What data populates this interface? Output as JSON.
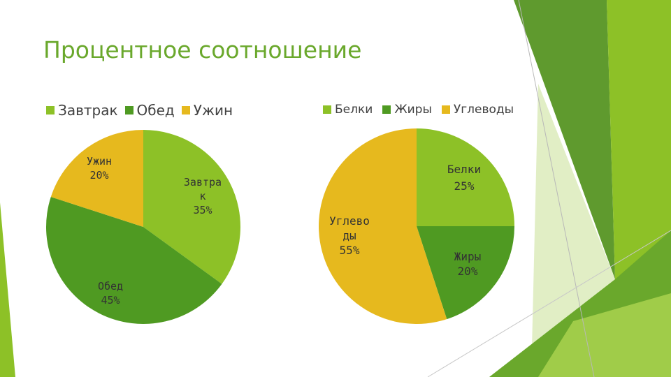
{
  "slide": {
    "title": "Процентное соотношение"
  },
  "colors": {
    "accent_green": "#6aa82c",
    "light_green": "#8dc127",
    "dark_green": "#4f9a22",
    "yellow": "#e6b91e"
  },
  "chart_data": [
    {
      "type": "pie",
      "title": "",
      "legend": "top",
      "categories": [
        "Завтрак",
        "Обед",
        "Ужин"
      ],
      "values": [
        35,
        45,
        20
      ],
      "unit": "%",
      "data_labels": [
        [
          "Завтра",
          "к",
          "35%"
        ],
        [
          "Обед",
          "45%"
        ],
        [
          "Ужин",
          "20%"
        ]
      ],
      "colors": [
        "#8dc127",
        "#4f9a22",
        "#e6b91e"
      ]
    },
    {
      "type": "pie",
      "title": "",
      "legend": "top",
      "categories": [
        "Белки",
        "Жиры",
        "Углеводы"
      ],
      "values": [
        25,
        20,
        55
      ],
      "unit": "%",
      "data_labels": [
        [
          "Белки",
          "25%"
        ],
        [
          "Жиры",
          "20%"
        ],
        [
          "Углево",
          "ды",
          "55%"
        ]
      ],
      "colors": [
        "#8dc127",
        "#4f9a22",
        "#e6b91e"
      ]
    }
  ]
}
